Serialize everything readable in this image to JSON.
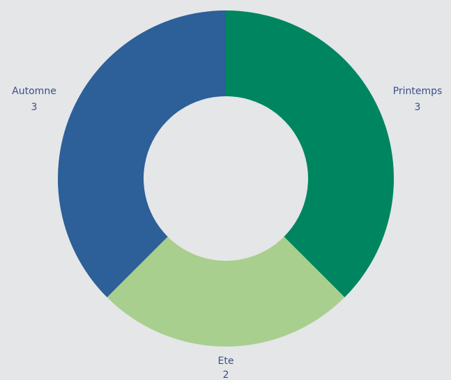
{
  "chart_data": {
    "type": "pie",
    "variant": "donut",
    "categories": [
      "Printemps",
      "Ete",
      "Automne"
    ],
    "values": [
      3,
      2,
      3
    ],
    "colors": [
      "#008561",
      "#a8cf8d",
      "#2d5f99"
    ],
    "labels": [
      {
        "name": "Printemps",
        "value": "3"
      },
      {
        "name": "Ete",
        "value": "2"
      },
      {
        "name": "Automne",
        "value": "3"
      }
    ],
    "start_angle": "top",
    "direction": "clockwise",
    "legend": "none"
  }
}
